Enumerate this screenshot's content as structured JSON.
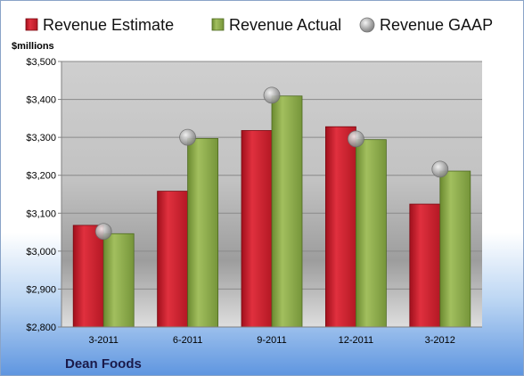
{
  "chart_data": {
    "type": "bar",
    "ylabel": "$millions",
    "company": "Dean Foods",
    "categories": [
      "3-2011",
      "6-2011",
      "9-2011",
      "12-2011",
      "3-2012"
    ],
    "series": [
      {
        "name": "Revenue Estimate",
        "kind": "bar",
        "color": "#d42030",
        "values": [
          3068,
          3158,
          3318,
          3328,
          3124
        ]
      },
      {
        "name": "Revenue Actual",
        "kind": "bar",
        "color": "#8fac4a",
        "values": [
          3046,
          3297,
          3409,
          3294,
          3211
        ]
      },
      {
        "name": "Revenue GAAP",
        "kind": "marker",
        "color": "#a8a8a8",
        "values": [
          3052,
          3300,
          3411,
          3296,
          3216
        ]
      }
    ],
    "ylim": [
      2800,
      3500
    ],
    "yticks": [
      2800,
      2900,
      3000,
      3100,
      3200,
      3300,
      3400,
      3500
    ],
    "ytick_labels": [
      "$2,800",
      "$2,900",
      "$3,000",
      "$3,100",
      "$3,200",
      "$3,300",
      "$3,400",
      "$3,500"
    ],
    "grid": true,
    "legend": "top"
  }
}
